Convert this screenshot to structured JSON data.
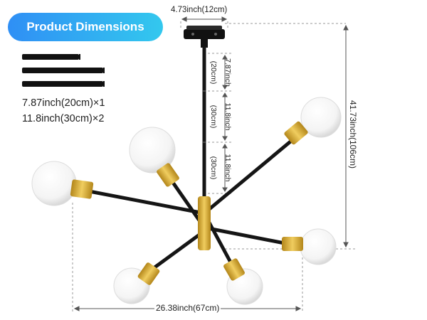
{
  "badge": {
    "title": "Product Dimensions"
  },
  "rod_legend": {
    "rods": [
      {
        "name": "short-rod"
      },
      {
        "name": "long-rod"
      },
      {
        "name": "long-rod"
      }
    ],
    "lines": [
      "7.87inch(20cm)×1",
      "11.8inch(30cm)×2"
    ]
  },
  "dimensions": {
    "canopy_width": "4.73inch(12cm)",
    "total_height": "41.73inch(106cm)",
    "total_width": "26.38inch(67cm)",
    "rod_short_in": "7.87inch",
    "rod_short_cm": "(20cm)",
    "rod_mid_in": "11.8inch",
    "rod_mid_cm": "(30cm)",
    "rod_low_in": "11.8inch",
    "rod_low_cm": "(30cm)"
  },
  "colors": {
    "badge_start": "#2f8ff5",
    "badge_end": "#33c8ee",
    "metal_black": "#151515",
    "brass": "#d4a52a",
    "glass": "#f7f7f7"
  }
}
